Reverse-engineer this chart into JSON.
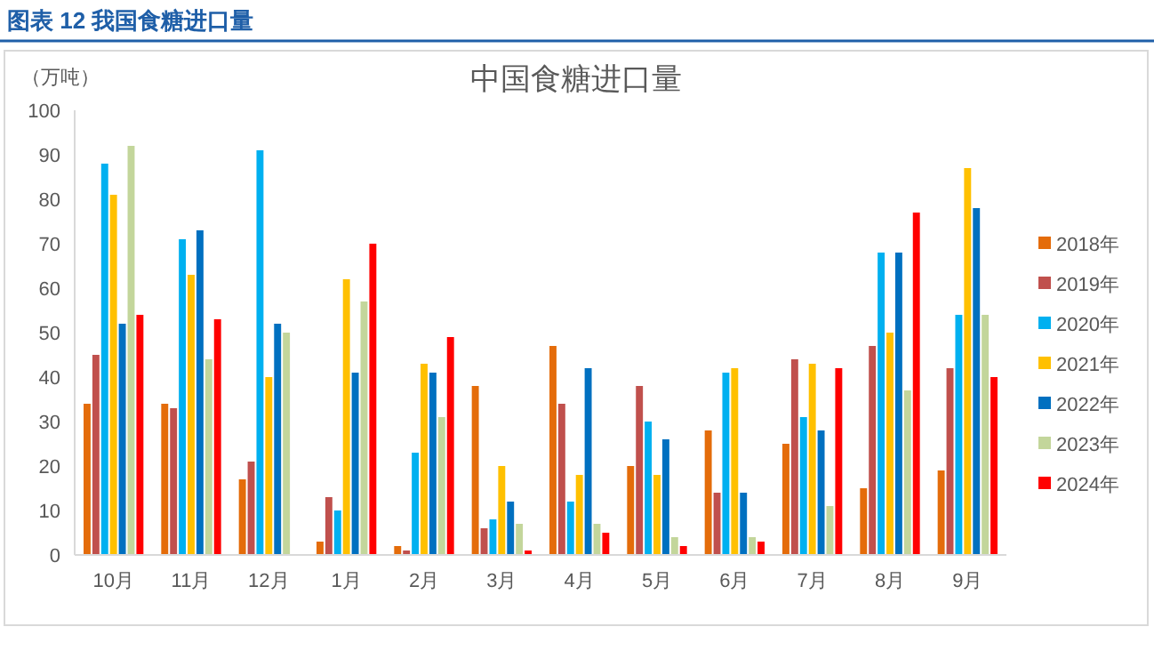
{
  "chart_data": {
    "type": "bar",
    "title": "中国食糖进口量",
    "ylabel": "（万吨）",
    "annotations": [
      "图表 12 我国食糖进口量"
    ],
    "categories": [
      "10月",
      "11月",
      "12月",
      "1月",
      "2月",
      "3月",
      "4月",
      "5月",
      "6月",
      "7月",
      "8月",
      "9月"
    ],
    "ylim": [
      0,
      100
    ],
    "yticks": [
      0,
      10,
      20,
      30,
      40,
      50,
      60,
      70,
      80,
      90,
      100
    ],
    "grid": false,
    "legend": "right",
    "series": [
      {
        "name": "2018年",
        "color": "#e46c0a",
        "values": [
          34,
          34,
          17,
          3,
          2,
          38,
          47,
          20,
          28,
          25,
          15,
          19
        ]
      },
      {
        "name": "2019年",
        "color": "#c0504d",
        "values": [
          45,
          33,
          21,
          13,
          1,
          6,
          34,
          38,
          14,
          44,
          47,
          42
        ]
      },
      {
        "name": "2020年",
        "color": "#00b0f0",
        "values": [
          88,
          71,
          91,
          10,
          23,
          8,
          12,
          30,
          41,
          31,
          68,
          54
        ]
      },
      {
        "name": "2021年",
        "color": "#ffc000",
        "values": [
          81,
          63,
          40,
          62,
          43,
          20,
          18,
          18,
          42,
          43,
          50,
          87
        ]
      },
      {
        "name": "2022年",
        "color": "#0070c0",
        "values": [
          52,
          73,
          52,
          41,
          41,
          12,
          42,
          26,
          14,
          28,
          68,
          78
        ]
      },
      {
        "name": "2023年",
        "color": "#c3d69b",
        "values": [
          92,
          44,
          50,
          57,
          31,
          7,
          7,
          4,
          4,
          11,
          37,
          54
        ]
      },
      {
        "name": "2024年",
        "color": "#ff0000",
        "values": [
          54,
          53,
          null,
          70,
          49,
          1,
          5,
          2,
          3,
          42,
          77,
          40
        ]
      }
    ]
  }
}
